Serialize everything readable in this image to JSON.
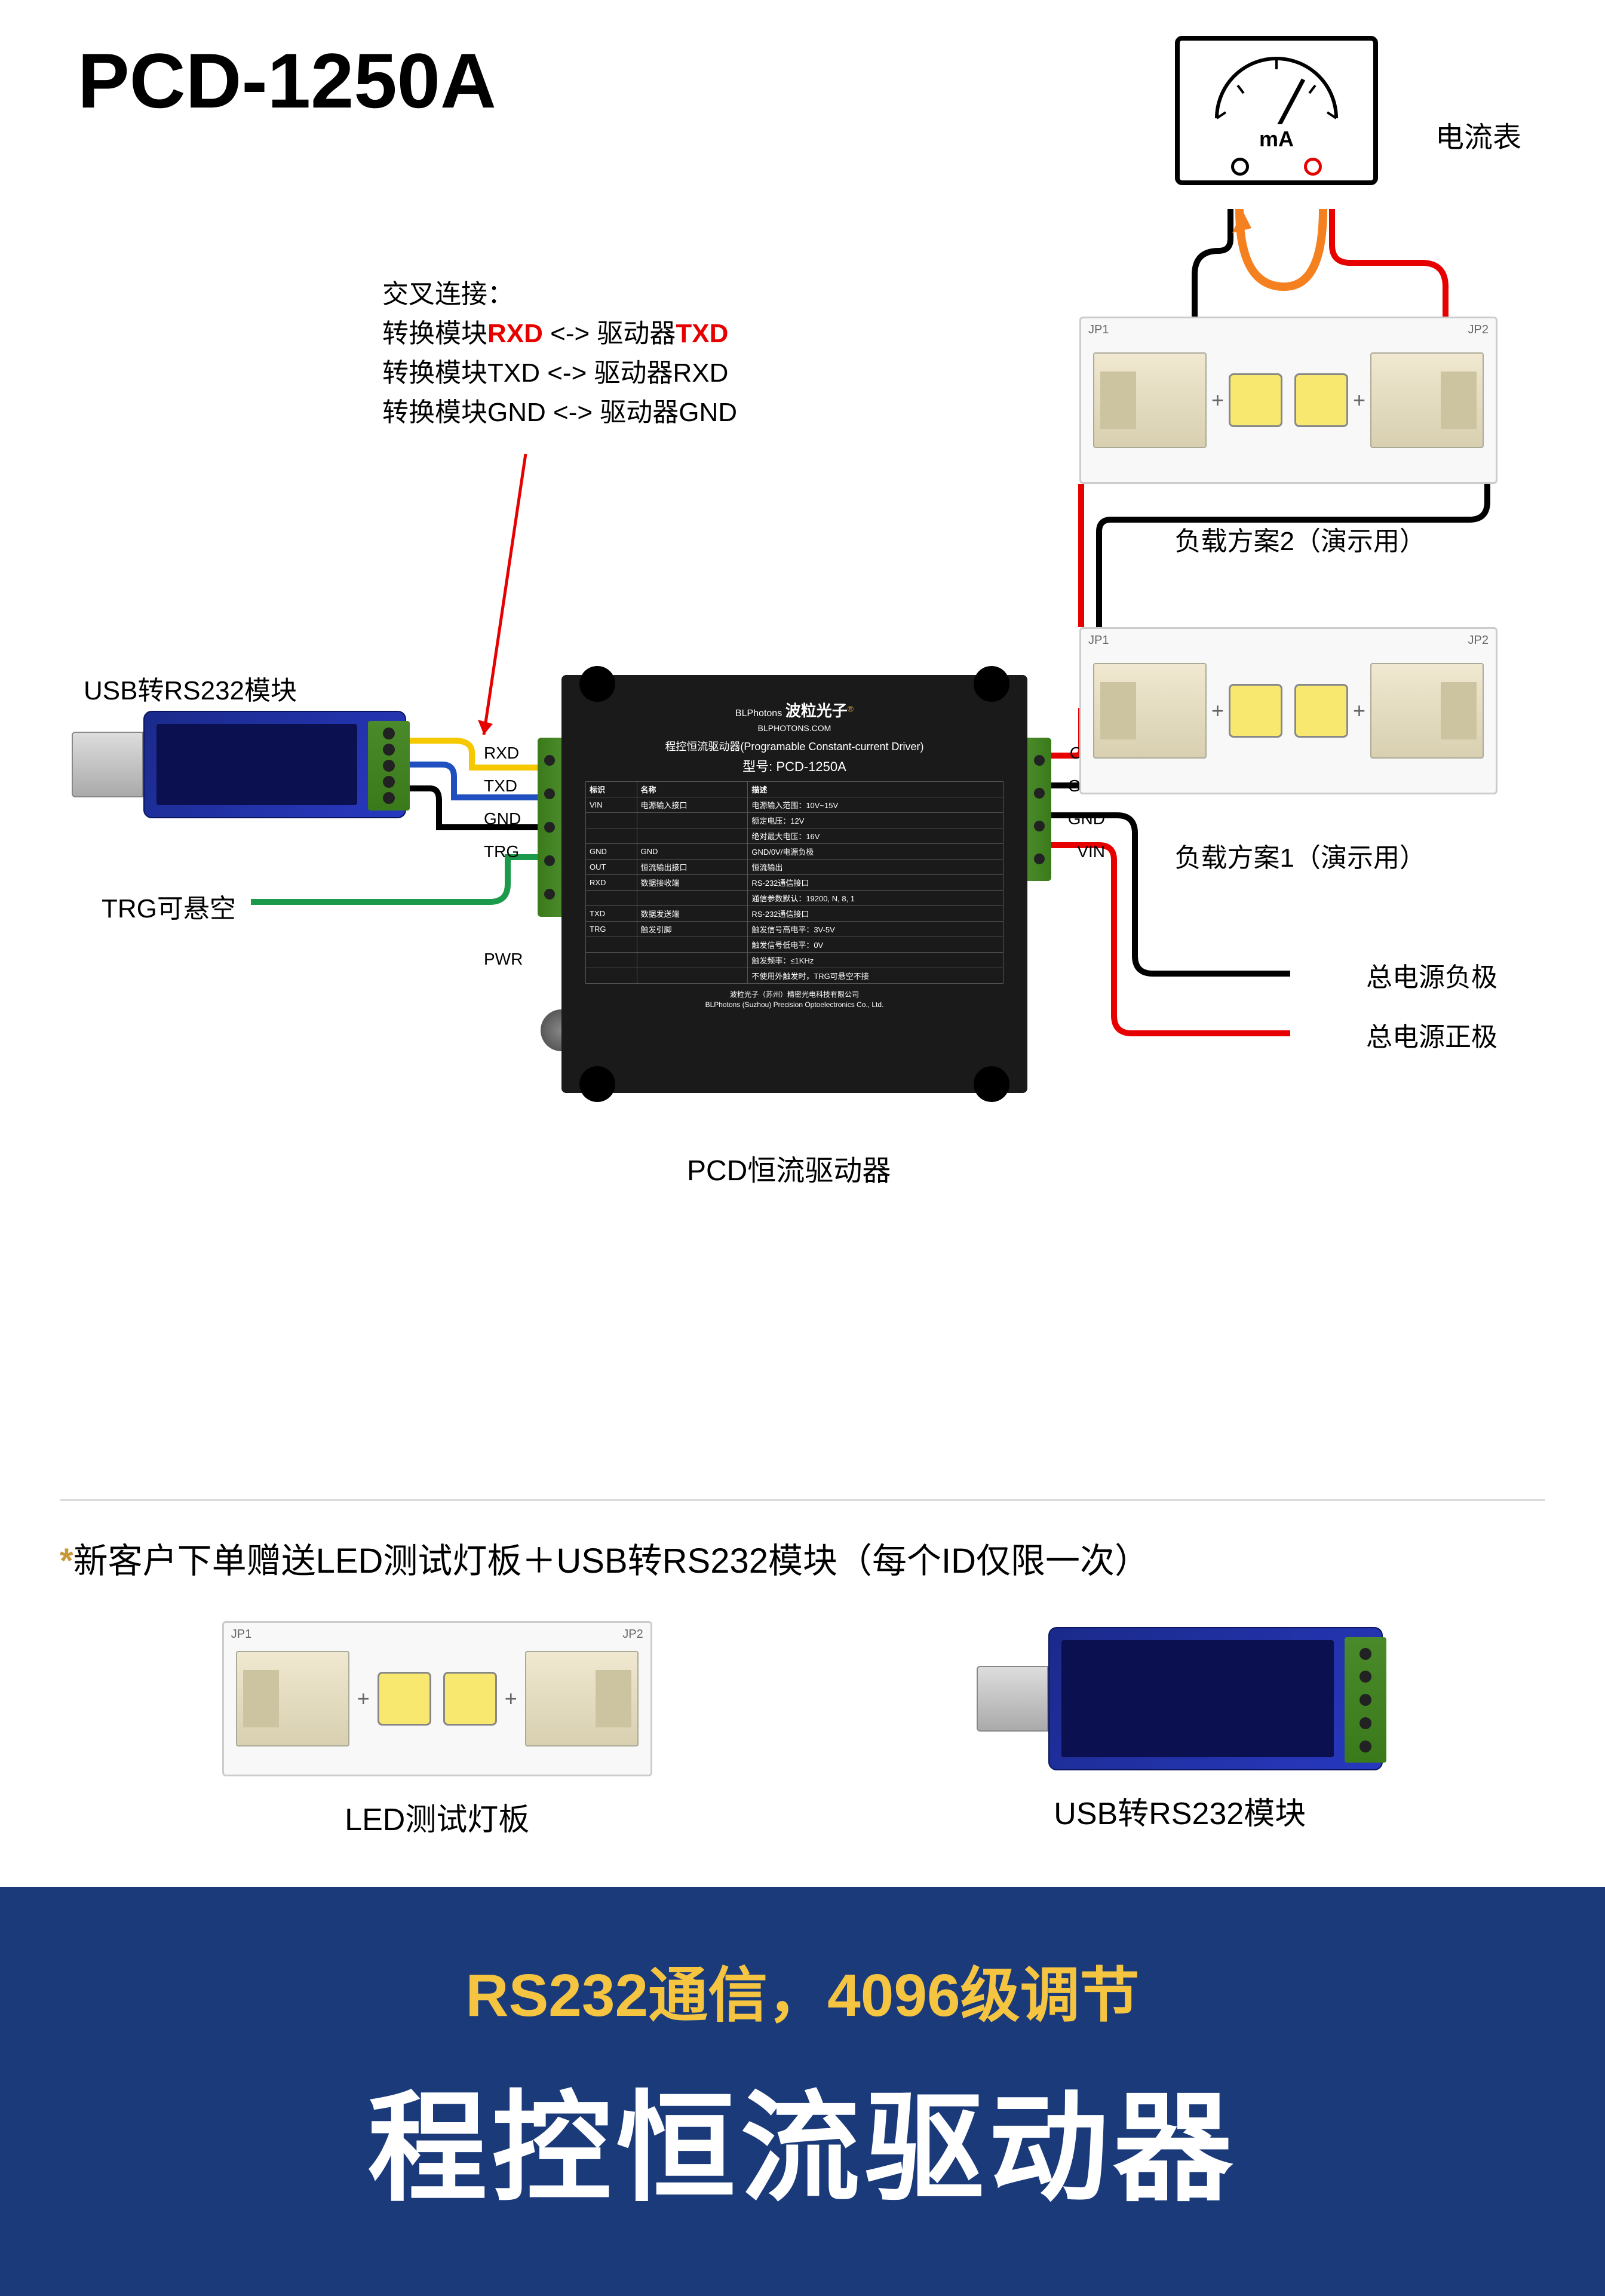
{
  "title": "PCD-1250A",
  "ammeter": {
    "unit": "mA",
    "label": "电流表",
    "term_neg_color": "#000",
    "term_pos_color": "#e60000"
  },
  "conn_note": {
    "heading": "交叉连接：",
    "l1a": "转换模块",
    "l1b": "RXD",
    "l1c": " <-> 驱动器",
    "l1d": "TXD",
    "l2": "转换模块TXD <-> 驱动器RXD",
    "l3": "转换模块GND <-> 驱动器GND"
  },
  "usb_label": "USB转RS232模块",
  "trg_label": "TRG可悬空",
  "driver": {
    "brand": "波粒光子",
    "brand_en": "BLPhotons",
    "reg": "®",
    "url": "BLPHOTONS.COM",
    "subtitle": "程控恒流驱动器(Programable Constant-current Driver)",
    "model_label": "型号:",
    "model": "PCD-1250A",
    "th1": "标识",
    "th2": "名称",
    "th3": "描述",
    "rows": [
      [
        "VIN",
        "电源输入接口",
        "电源输入范围：10V~15V"
      ],
      [
        "",
        "",
        "额定电压：12V"
      ],
      [
        "",
        "",
        "绝对最大电压：16V"
      ],
      [
        "GND",
        "GND",
        "GND/0V/电源负极"
      ],
      [
        "OUT",
        "恒流输出接口",
        "恒流输出"
      ],
      [
        "RXD",
        "数据接收端",
        "RS-232通信接口"
      ],
      [
        "",
        "",
        "通信参数默认：19200, N, 8, 1"
      ],
      [
        "TXD",
        "数据发送端",
        "RS-232通信接口"
      ],
      [
        "TRG",
        "触发引脚",
        "触发信号高电平：3V-5V"
      ],
      [
        "",
        "",
        "触发信号低电平：0V"
      ],
      [
        "",
        "",
        "触发频率：≤1KHz"
      ],
      [
        "",
        "",
        "不使用外触发时，TRG可悬空不接"
      ]
    ],
    "footer1": "波粒光子（苏州）精密光电科技有限公司",
    "footer2": "BLPhotons (Suzhou) Precision Optoelectronics Co., Ltd.",
    "pins_left": [
      "RXD",
      "TXD",
      "GND",
      "TRG",
      "",
      "PWR"
    ],
    "pins_right": [
      "OUT",
      "GND",
      "GND",
      "VIN"
    ]
  },
  "driver_label": "PCD恒流驱动器",
  "led_jp1": "JP1",
  "led_jp2": "JP2",
  "load1": "负载方案1（演示用）",
  "load2": "负载方案2（演示用）",
  "power_neg": "总电源负极",
  "power_pos": "总电源正极",
  "gift": {
    "note_star": "*",
    "note": "新客户下单赠送LED测试灯板＋USB转RS232模块（每个ID仅限一次）",
    "cap1": "LED测试灯板",
    "cap2": "USB转RS232模块"
  },
  "banner": {
    "sub": "RS232通信，4096级调节",
    "main": "程控恒流驱动器"
  },
  "colors": {
    "wire_red": "#e60000",
    "wire_black": "#000",
    "wire_green": "#1a9a4a",
    "wire_yellow": "#f5c800",
    "wire_blue": "#2050c0",
    "wire_orange": "#f58020",
    "banner_bg": "#1a3a7a",
    "banner_yellow": "#f5c542"
  }
}
